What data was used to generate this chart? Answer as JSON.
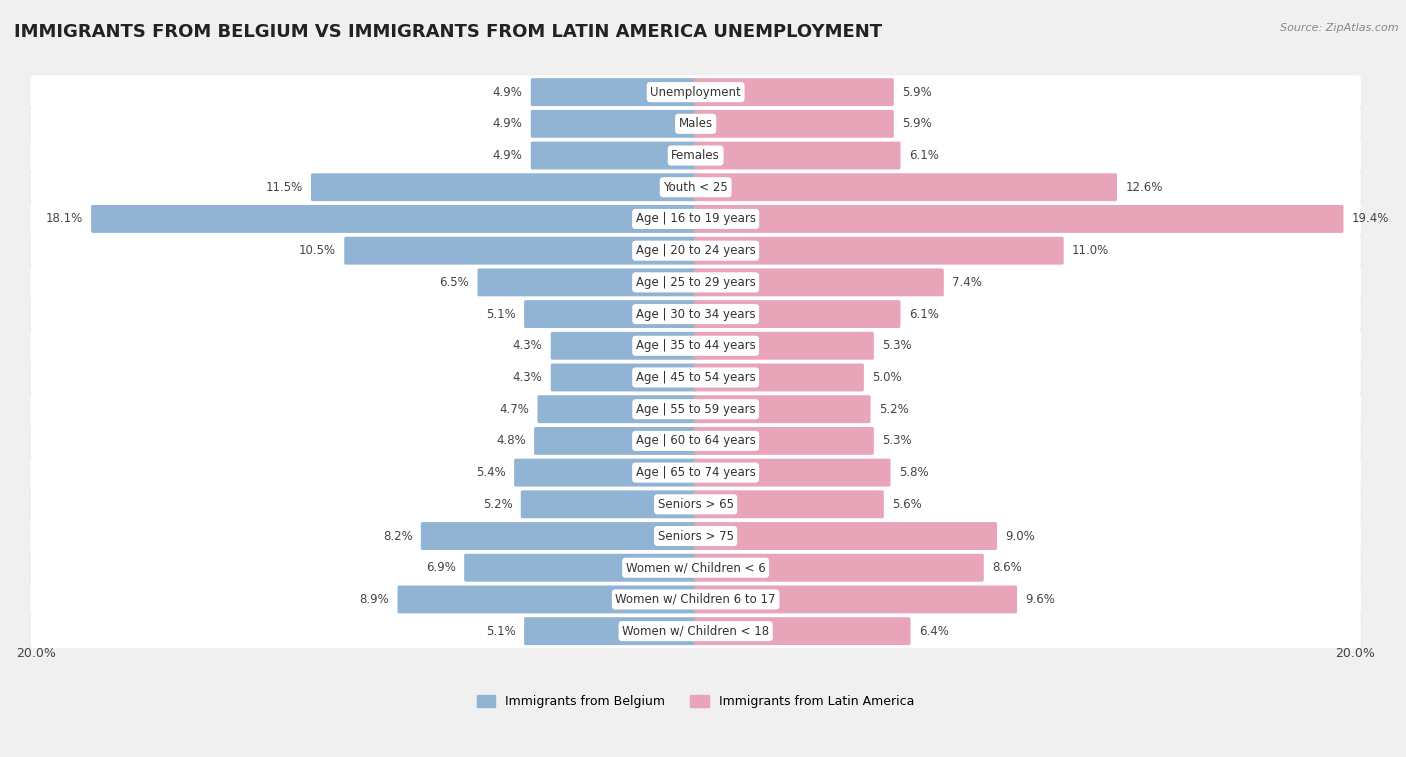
{
  "title": "IMMIGRANTS FROM BELGIUM VS IMMIGRANTS FROM LATIN AMERICA UNEMPLOYMENT",
  "source": "Source: ZipAtlas.com",
  "categories": [
    "Unemployment",
    "Males",
    "Females",
    "Youth < 25",
    "Age | 16 to 19 years",
    "Age | 20 to 24 years",
    "Age | 25 to 29 years",
    "Age | 30 to 34 years",
    "Age | 35 to 44 years",
    "Age | 45 to 54 years",
    "Age | 55 to 59 years",
    "Age | 60 to 64 years",
    "Age | 65 to 74 years",
    "Seniors > 65",
    "Seniors > 75",
    "Women w/ Children < 6",
    "Women w/ Children 6 to 17",
    "Women w/ Children < 18"
  ],
  "belgium_values": [
    4.9,
    4.9,
    4.9,
    11.5,
    18.1,
    10.5,
    6.5,
    5.1,
    4.3,
    4.3,
    4.7,
    4.8,
    5.4,
    5.2,
    8.2,
    6.9,
    8.9,
    5.1
  ],
  "latin_america_values": [
    5.9,
    5.9,
    6.1,
    12.6,
    19.4,
    11.0,
    7.4,
    6.1,
    5.3,
    5.0,
    5.2,
    5.3,
    5.8,
    5.6,
    9.0,
    8.6,
    9.6,
    6.4
  ],
  "belgium_color": "#91b4d5",
  "latin_america_color": "#e8a4b8",
  "background_color": "#f0f0f0",
  "row_bg_color": "#e8e8e8",
  "bar_bg_color": "#ffffff",
  "max_value": 20.0,
  "title_fontsize": 13,
  "label_fontsize": 8.5
}
